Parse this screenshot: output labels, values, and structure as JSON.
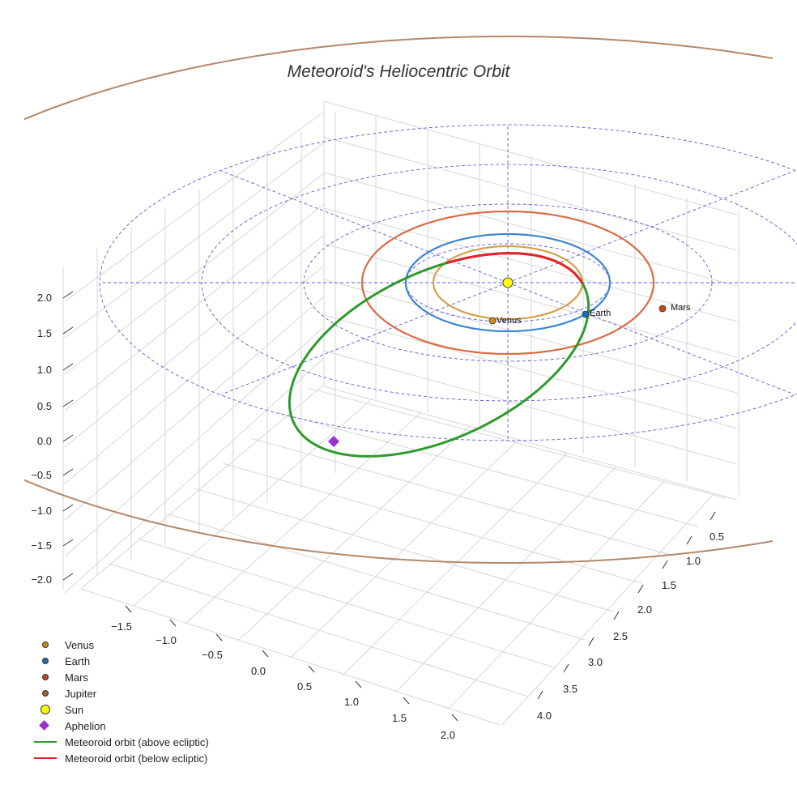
{
  "chart_data": {
    "type": "scatter",
    "title": "Meteoroid's Heliocentric Orbit",
    "projection": "3d",
    "x_axis": {
      "ticks": [
        "−1.5",
        "−1.0",
        "−0.5",
        "0.0",
        "0.5",
        "1.0",
        "1.5",
        "2.0"
      ]
    },
    "y_axis": {
      "ticks": [
        "0.5",
        "1.0",
        "1.5",
        "2.0",
        "2.5",
        "3.0",
        "3.5",
        "4.0"
      ]
    },
    "z_axis": {
      "ticks": [
        "2.0",
        "1.5",
        "1.0",
        "0.5",
        "0.0",
        "−0.5",
        "−1.0",
        "−1.5",
        "−2.0"
      ]
    },
    "ecliptic_rings_au": [
      1.0,
      2.0,
      3.0,
      4.0
    ],
    "bodies": [
      {
        "name": "Venus",
        "orbit_radius_au": 0.72,
        "color": "#d08a1c",
        "orbit_color": "#d4a04a"
      },
      {
        "name": "Earth",
        "orbit_radius_au": 1.0,
        "color": "#1f6fbf",
        "orbit_color": "#3a86d0"
      },
      {
        "name": "Mars",
        "orbit_radius_au": 1.52,
        "color": "#c8441a",
        "orbit_color": "#dd6a45"
      },
      {
        "name": "Jupiter",
        "orbit_radius_au": 5.2,
        "color": "#a85a30",
        "orbit_color": "#b5876a"
      }
    ],
    "sun": {
      "name": "Sun",
      "x": 0,
      "y": 0,
      "z": 0,
      "color": "#ffff00"
    },
    "aphelion": {
      "name": "Aphelion",
      "color": "#9b30d0"
    },
    "series": [
      {
        "name": "Meteoroid orbit (above ecliptic)",
        "color": "#2e9a2e"
      },
      {
        "name": "Meteoroid orbit (below ecliptic)",
        "color": "#e8202a"
      }
    ],
    "legend": [
      {
        "label": "Venus",
        "kind": "dot",
        "color": "#d08a1c"
      },
      {
        "label": "Earth",
        "kind": "dot",
        "color": "#1f6fbf"
      },
      {
        "label": "Mars",
        "kind": "dot",
        "color": "#c8441a"
      },
      {
        "label": "Jupiter",
        "kind": "dot",
        "color": "#a85a30"
      },
      {
        "label": "Sun",
        "kind": "sun",
        "color": "#ffff00"
      },
      {
        "label": "Aphelion",
        "kind": "diamond",
        "color": "#9b30d0"
      },
      {
        "label": "Meteoroid orbit (above ecliptic)",
        "kind": "line",
        "color": "#2e9a2e"
      },
      {
        "label": "Meteoroid orbit (below ecliptic)",
        "kind": "line",
        "color": "#e8202a"
      }
    ],
    "legend_position": "bottom-left"
  }
}
